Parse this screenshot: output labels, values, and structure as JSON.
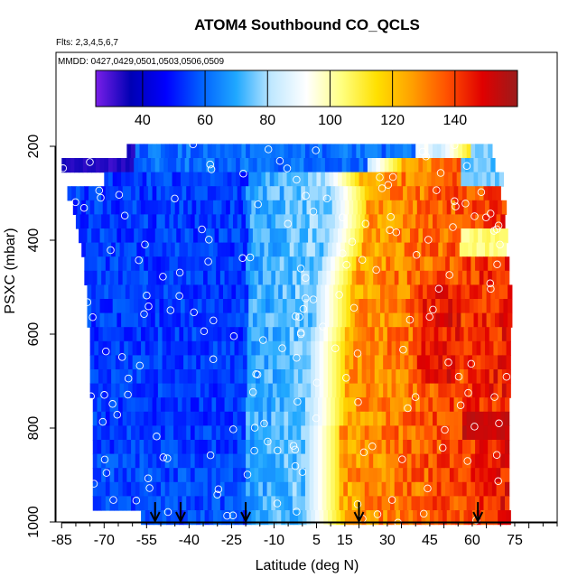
{
  "chart_data": {
    "type": "heatmap",
    "title": "ATOM4 Southbound CO_QCLS",
    "flights_note": "Flts: 2,3,4,5,6,7",
    "dates_note": "MMDD: 0427,0429,0501,0503,0506,0509",
    "xlabel": "Latitude (deg N)",
    "ylabel": "PSXC (mbar)",
    "xlim": [
      -87,
      90
    ],
    "ylim": [
      1000,
      0
    ],
    "x_ticks": [
      -85,
      -70,
      -55,
      -40,
      -25,
      -10,
      5,
      15,
      30,
      45,
      60,
      75
    ],
    "y_ticks": [
      200,
      400,
      600,
      800,
      1000
    ],
    "colorbar": {
      "range": [
        25,
        160
      ],
      "ticks": [
        40,
        60,
        80,
        100,
        120,
        140
      ],
      "colors": [
        "#7a1fe8",
        "#0000b4",
        "#0000ff",
        "#0060ff",
        "#20a8ff",
        "#c0e8ff",
        "#ffffff",
        "#ffff80",
        "#ffe000",
        "#ffa000",
        "#ff5000",
        "#e00000",
        "#9b1b1b"
      ]
    },
    "curtain_levels_mbar": [
      210,
      240,
      270,
      300,
      330,
      360,
      390,
      420,
      450,
      480,
      510,
      540,
      570,
      600,
      630,
      660,
      690,
      720,
      750,
      780,
      810,
      840,
      870,
      900,
      930,
      960,
      990
    ],
    "transition_lat": [
      55,
      30,
      15,
      18,
      18,
      18,
      17,
      16,
      14,
      13,
      12,
      12,
      12,
      11,
      10,
      10,
      10,
      10,
      10,
      10,
      9,
      9,
      9,
      9,
      9,
      9,
      9
    ],
    "profile_latitudes": [
      -52,
      -43,
      -20,
      20,
      62
    ]
  }
}
